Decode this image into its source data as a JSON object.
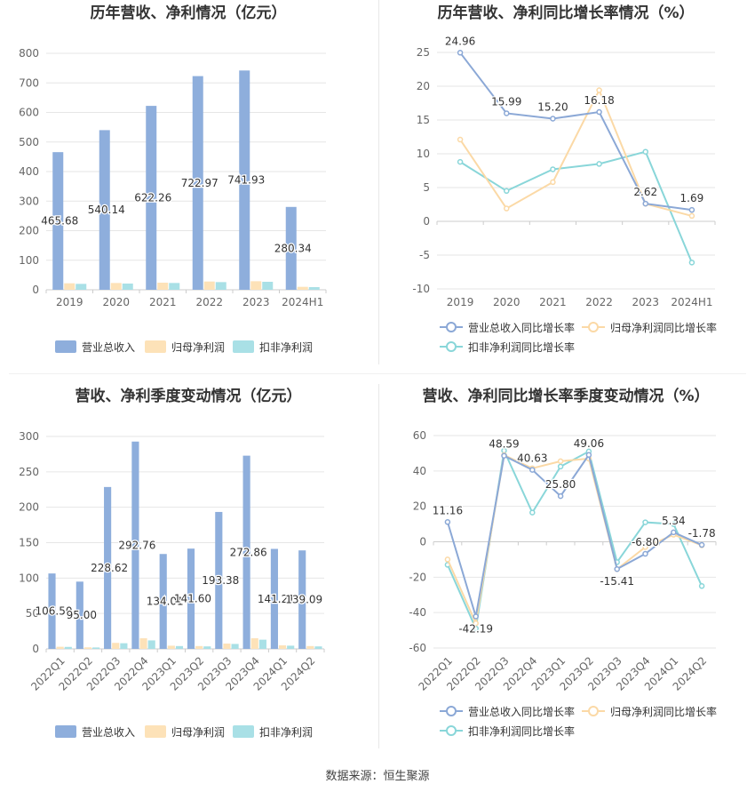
{
  "source_label": "数据来源：恒生聚源",
  "colors": {
    "revenue": "#8eaedc",
    "parent_profit": "#fde2b8",
    "deducted_profit": "#a9e0e6",
    "revenue_line": "#8ba8d6",
    "parent_line": "#fbd9a6",
    "deducted_line": "#89d6d9",
    "grid": "#e6e6e6",
    "axis_text": "#666666",
    "title": "#333333"
  },
  "chart_data": [
    {
      "type": "bar",
      "title": "历年营收、净利情况（亿元）",
      "categories": [
        "2019",
        "2020",
        "2021",
        "2022",
        "2023",
        "2024H1"
      ],
      "yticks": [
        "0",
        "100",
        "200",
        "300",
        "400",
        "500",
        "600",
        "700",
        "800"
      ],
      "ylim": [
        0,
        800
      ],
      "grid": true,
      "legend_position": "bottom",
      "series": [
        {
          "name": "营业总收入",
          "values": [
            465.68,
            540.14,
            622.26,
            722.97,
            741.93,
            280.34
          ],
          "labels": [
            "465.68",
            "540.14",
            "622.26",
            "722.97",
            "741.93",
            "280.34"
          ]
        },
        {
          "name": "归母净利润",
          "values": [
            22,
            23,
            24,
            28,
            29,
            10
          ]
        },
        {
          "name": "扣非净利润",
          "values": [
            20,
            21,
            23,
            26,
            27,
            9
          ]
        }
      ]
    },
    {
      "type": "line",
      "title": "历年营收、净利同比增长率情况（%）",
      "categories": [
        "2019",
        "2020",
        "2021",
        "2022",
        "2023",
        "2024H1"
      ],
      "yticks": [
        "-10",
        "-5",
        "0",
        "5",
        "10",
        "15",
        "20",
        "25"
      ],
      "ylim": [
        -10,
        25
      ],
      "grid": true,
      "legend_position": "bottom",
      "series": [
        {
          "name": "营业总收入同比增长率",
          "values": [
            24.96,
            15.99,
            15.2,
            16.18,
            2.62,
            1.69
          ],
          "labels": [
            "24.96",
            "15.99",
            "15.20",
            "16.18",
            "2.62",
            "1.69"
          ]
        },
        {
          "name": "归母净利润同比增长率",
          "values": [
            12.1,
            1.9,
            5.8,
            19.4,
            2.6,
            0.8
          ]
        },
        {
          "name": "扣非净利润同比增长率",
          "values": [
            8.8,
            4.5,
            7.7,
            8.5,
            10.3,
            -6.1
          ]
        }
      ]
    },
    {
      "type": "bar",
      "title": "营收、净利季度变动情况（亿元）",
      "categories": [
        "2022Q1",
        "2022Q2",
        "2022Q3",
        "2022Q4",
        "2023Q1",
        "2023Q2",
        "2023Q3",
        "2023Q4",
        "2024Q1",
        "2024Q2"
      ],
      "yticks": [
        "0",
        "50",
        "100",
        "150",
        "200",
        "250",
        "300"
      ],
      "ylim": [
        0,
        300
      ],
      "grid": true,
      "legend_position": "bottom",
      "series": [
        {
          "name": "营业总收入",
          "values": [
            106.5,
            95.0,
            228.62,
            292.76,
            134.01,
            141.6,
            193.38,
            272.86,
            141.21,
            139.09
          ],
          "labels": [
            "106.50",
            "95.00",
            "228.62",
            "292.76",
            "134.01",
            "141.60",
            "193.38",
            "272.86",
            "141.21",
            "139.09"
          ]
        },
        {
          "name": "归母净利润",
          "values": [
            3,
            2.2,
            8.5,
            15,
            4.5,
            4,
            7.5,
            15,
            5,
            4
          ]
        },
        {
          "name": "扣非净利润",
          "values": [
            2.8,
            2,
            8,
            12,
            4,
            3.5,
            7,
            13,
            4.5,
            3.5
          ]
        }
      ]
    },
    {
      "type": "line",
      "title": "营收、净利同比增长率季度变动情况（%）",
      "categories": [
        "2022Q1",
        "2022Q2",
        "2022Q3",
        "2022Q4",
        "2023Q1",
        "2023Q2",
        "2023Q3",
        "2023Q4",
        "2024Q1",
        "2024Q2"
      ],
      "yticks": [
        "-60",
        "-40",
        "-20",
        "0",
        "20",
        "40",
        "60"
      ],
      "ylim": [
        -60,
        60
      ],
      "grid": true,
      "legend_position": "bottom",
      "series": [
        {
          "name": "营业总收入同比增长率",
          "values": [
            11.16,
            -42.19,
            48.59,
            40.63,
            25.8,
            49.06,
            -15.41,
            -6.8,
            5.34,
            -1.78
          ],
          "labels": [
            "11.16",
            "-42.19",
            "48.59",
            "40.63",
            "25.80",
            "49.06",
            "-15.41",
            "-6.80",
            "5.34",
            "-1.78"
          ]
        },
        {
          "name": "归母净利润同比增长率",
          "values": [
            -10,
            -46,
            49,
            41.5,
            45.5,
            47,
            -15.5,
            -3,
            4,
            -2
          ]
        },
        {
          "name": "扣非净利润同比增长率",
          "values": [
            -13,
            -49,
            51.5,
            16.5,
            42.5,
            51,
            -11.5,
            11,
            10,
            -25
          ]
        }
      ]
    }
  ]
}
